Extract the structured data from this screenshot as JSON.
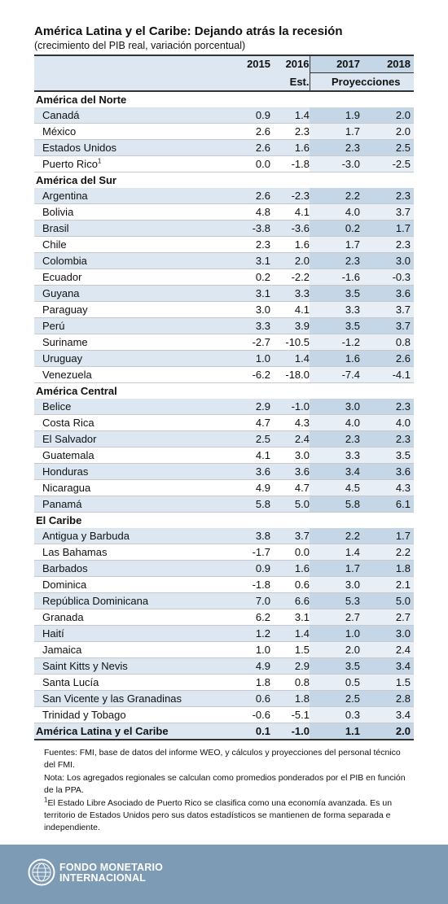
{
  "chart_data": {
    "type": "table",
    "title": "América Latina y el Caribe: Dejando atrás la recesión",
    "subtitle": "(crecimiento del PIB real, variación porcentual)",
    "columns": [
      "2015",
      "2016",
      "2017",
      "2018"
    ],
    "subheaders": {
      "est": "Est.",
      "proj": "Proyecciones"
    },
    "groups": [
      {
        "name": "América del Norte",
        "rows": [
          {
            "country": "Canadá",
            "values": [
              "0.9",
              "1.4",
              "1.9",
              "2.0"
            ]
          },
          {
            "country": "México",
            "values": [
              "2.6",
              "2.3",
              "1.7",
              "2.0"
            ]
          },
          {
            "country": "Estados Unidos",
            "values": [
              "2.6",
              "1.6",
              "2.3",
              "2.5"
            ]
          },
          {
            "country": "Puerto Rico",
            "sup": "1",
            "values": [
              "0.0",
              "-1.8",
              "-3.0",
              "-2.5"
            ]
          }
        ]
      },
      {
        "name": "América del Sur",
        "rows": [
          {
            "country": "Argentina",
            "values": [
              "2.6",
              "-2.3",
              "2.2",
              "2.3"
            ]
          },
          {
            "country": "Bolivia",
            "values": [
              "4.8",
              "4.1",
              "4.0",
              "3.7"
            ]
          },
          {
            "country": "Brasil",
            "values": [
              "-3.8",
              "-3.6",
              "0.2",
              "1.7"
            ]
          },
          {
            "country": "Chile",
            "values": [
              "2.3",
              "1.6",
              "1.7",
              "2.3"
            ]
          },
          {
            "country": "Colombia",
            "values": [
              "3.1",
              "2.0",
              "2.3",
              "3.0"
            ]
          },
          {
            "country": "Ecuador",
            "values": [
              "0.2",
              "-2.2",
              "-1.6",
              "-0.3"
            ]
          },
          {
            "country": "Guyana",
            "values": [
              "3.1",
              "3.3",
              "3.5",
              "3.6"
            ]
          },
          {
            "country": "Paraguay",
            "values": [
              "3.0",
              "4.1",
              "3.3",
              "3.7"
            ]
          },
          {
            "country": "Perú",
            "values": [
              "3.3",
              "3.9",
              "3.5",
              "3.7"
            ]
          },
          {
            "country": "Suriname",
            "values": [
              "-2.7",
              "-10.5",
              "-1.2",
              "0.8"
            ]
          },
          {
            "country": "Uruguay",
            "values": [
              "1.0",
              "1.4",
              "1.6",
              "2.6"
            ]
          },
          {
            "country": "Venezuela",
            "values": [
              "-6.2",
              "-18.0",
              "-7.4",
              "-4.1"
            ]
          }
        ]
      },
      {
        "name": "América Central",
        "rows": [
          {
            "country": "Belice",
            "values": [
              "2.9",
              "-1.0",
              "3.0",
              "2.3"
            ]
          },
          {
            "country": "Costa Rica",
            "values": [
              "4.7",
              "4.3",
              "4.0",
              "4.0"
            ]
          },
          {
            "country": "El Salvador",
            "values": [
              "2.5",
              "2.4",
              "2.3",
              "2.3"
            ]
          },
          {
            "country": "Guatemala",
            "values": [
              "4.1",
              "3.0",
              "3.3",
              "3.5"
            ]
          },
          {
            "country": "Honduras",
            "values": [
              "3.6",
              "3.6",
              "3.4",
              "3.6"
            ]
          },
          {
            "country": "Nicaragua",
            "values": [
              "4.9",
              "4.7",
              "4.5",
              "4.3"
            ]
          },
          {
            "country": "Panamá",
            "values": [
              "5.8",
              "5.0",
              "5.8",
              "6.1"
            ]
          }
        ]
      },
      {
        "name": "El Caribe",
        "rows": [
          {
            "country": "Antigua y Barbuda",
            "values": [
              "3.8",
              "3.7",
              "2.2",
              "1.7"
            ]
          },
          {
            "country": "Las Bahamas",
            "values": [
              "-1.7",
              "0.0",
              "1.4",
              "2.2"
            ]
          },
          {
            "country": "Barbados",
            "values": [
              "0.9",
              "1.6",
              "1.7",
              "1.8"
            ]
          },
          {
            "country": "Dominica",
            "values": [
              "-1.8",
              "0.6",
              "3.0",
              "2.1"
            ]
          },
          {
            "country": "República Dominicana",
            "values": [
              "7.0",
              "6.6",
              "5.3",
              "5.0"
            ]
          },
          {
            "country": "Granada",
            "values": [
              "6.2",
              "3.1",
              "2.7",
              "2.7"
            ]
          },
          {
            "country": "Haití",
            "values": [
              "1.2",
              "1.4",
              "1.0",
              "3.0"
            ]
          },
          {
            "country": "Jamaica",
            "values": [
              "1.0",
              "1.5",
              "2.0",
              "2.4"
            ]
          },
          {
            "country": "Saint Kitts y Nevis",
            "values": [
              "4.9",
              "2.9",
              "3.5",
              "3.4"
            ]
          },
          {
            "country": "Santa Lucía",
            "values": [
              "1.8",
              "0.8",
              "0.5",
              "1.5"
            ]
          },
          {
            "country": "San Vicente y las Granadinas",
            "values": [
              "0.6",
              "1.8",
              "2.5",
              "2.8"
            ]
          },
          {
            "country": "Trinidad y Tobago",
            "values": [
              "-0.6",
              "-5.1",
              "0.3",
              "3.4"
            ]
          }
        ]
      }
    ],
    "total": {
      "country": "América Latina y el Caribe",
      "values": [
        "0.1",
        "-1.0",
        "1.1",
        "2.0"
      ]
    }
  },
  "notes": {
    "sources": "Fuentes: FMI, base de datos del informe WEO, y cálculos y proyecciones del personal técnico del FMI.",
    "note": "Nota: Los agregados regionales se calculan como promedios ponderados por el PIB en función de la PPA.",
    "footnote_mark": "1",
    "footnote": "El Estado Libre Asociado de Puerto Rico se clasifica como una economía avanzada. Es un territorio de Estados Unidos pero sus datos estadísticos se mantienen de forma separada e independiente."
  },
  "footer": {
    "org_line1": "FONDO MONETARIO",
    "org_line2": "INTERNACIONAL",
    "logo_icon": "imf-seal-icon"
  },
  "colors": {
    "header_bg": "#dce7f1",
    "projection_bg": "#c5d6e6",
    "footer_bg": "#7d9bb4"
  }
}
